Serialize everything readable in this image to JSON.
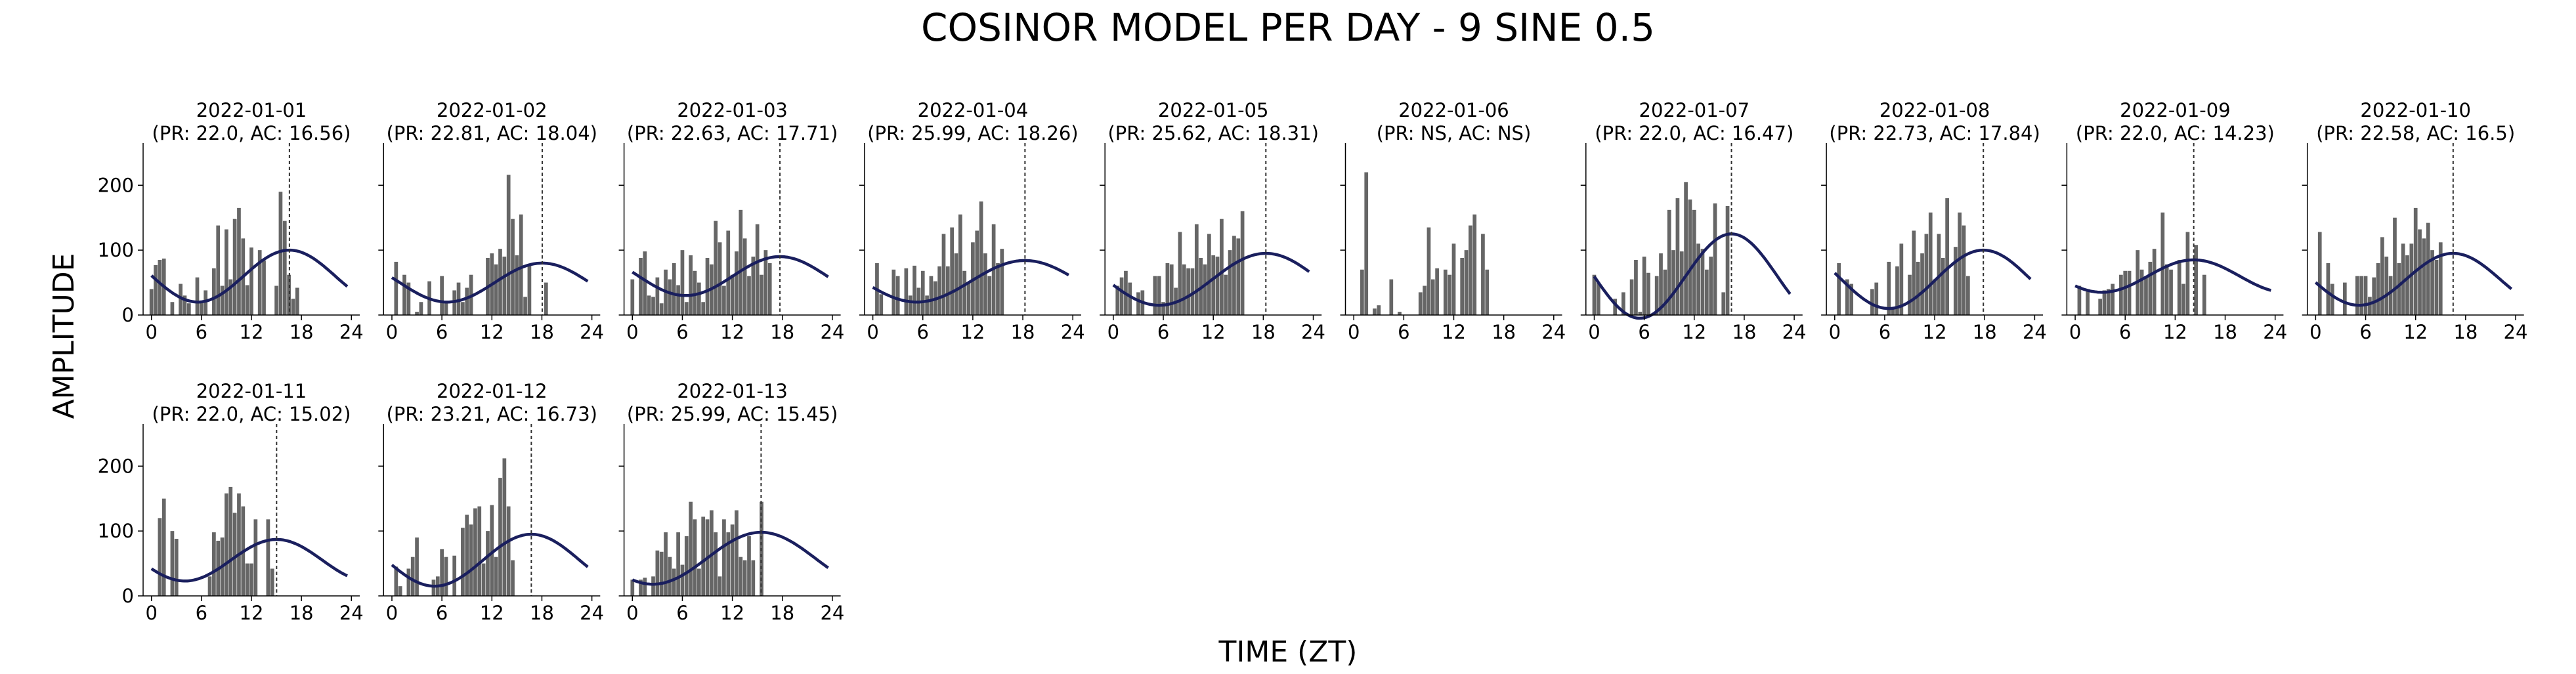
{
  "figure": {
    "title": "COSINOR MODEL PER DAY - 9 SINE 0.5",
    "xlabel": "TIME (ZT)",
    "ylabel": "AMPLITUDE"
  },
  "colors": {
    "bar": "#666666",
    "fit": "#1a1f5e",
    "acrophase_line": "#333333",
    "axis": "#000000"
  },
  "chart_data": {
    "type": "bar",
    "layout": "small-multiples",
    "x_ticks": [
      0,
      6,
      12,
      18,
      24
    ],
    "y_ticks": [
      0,
      100,
      200
    ],
    "xlim": [
      -1,
      25
    ],
    "ylim": [
      0,
      265
    ],
    "bins_per_hour": 2,
    "panels": [
      {
        "title": "2022-01-01",
        "subtitle": "(PR: 22.0, AC: 16.56)",
        "period": 22.0,
        "acrophase": 16.56,
        "mesor": 60,
        "amplitude": 40,
        "values": [
          40,
          77,
          85,
          87,
          0,
          20,
          0,
          48,
          30,
          18,
          0,
          58,
          20,
          38,
          0,
          72,
          138,
          45,
          132,
          55,
          148,
          165,
          118,
          46,
          104,
          0,
          100,
          84,
          0,
          0,
          45,
          190,
          145,
          62,
          25,
          42,
          0,
          0,
          0
        ]
      },
      {
        "title": "2022-01-02",
        "subtitle": "(PR: 22.81, AC: 18.04)",
        "period": 22.81,
        "acrophase": 18.04,
        "mesor": 50,
        "amplitude": 30,
        "values": [
          0,
          82,
          0,
          62,
          50,
          0,
          5,
          20,
          0,
          52,
          0,
          0,
          60,
          18,
          0,
          38,
          50,
          20,
          42,
          62,
          0,
          0,
          0,
          88,
          95,
          78,
          102,
          90,
          216,
          148,
          92,
          155,
          28,
          78,
          0,
          0,
          0,
          50,
          0
        ]
      },
      {
        "title": "2022-01-03",
        "subtitle": "(PR: 22.63, AC: 17.71)",
        "period": 22.63,
        "acrophase": 17.71,
        "mesor": 60,
        "amplitude": 30,
        "values": [
          55,
          0,
          88,
          98,
          30,
          28,
          58,
          18,
          70,
          55,
          80,
          46,
          100,
          20,
          92,
          68,
          50,
          20,
          88,
          78,
          145,
          112,
          45,
          130,
          62,
          98,
          162,
          118,
          60,
          90,
          140,
          62,
          100,
          80,
          0,
          0,
          0,
          0,
          0
        ]
      },
      {
        "title": "2022-01-04",
        "subtitle": "(PR: 25.99, AC: 18.26)",
        "period": 25.99,
        "acrophase": 18.26,
        "mesor": 52,
        "amplitude": 32,
        "values": [
          0,
          80,
          32,
          0,
          0,
          70,
          60,
          0,
          72,
          30,
          76,
          42,
          68,
          30,
          60,
          52,
          75,
          125,
          75,
          135,
          95,
          155,
          68,
          50,
          112,
          130,
          175,
          95,
          60,
          140,
          80,
          102,
          0,
          0,
          0,
          0,
          0,
          0,
          0
        ]
      },
      {
        "title": "2022-01-05",
        "subtitle": "(PR: 25.62, AC: 18.31)",
        "period": 25.62,
        "acrophase": 18.31,
        "mesor": 55,
        "amplitude": 40,
        "values": [
          0,
          45,
          58,
          68,
          50,
          0,
          35,
          38,
          0,
          0,
          60,
          60,
          20,
          80,
          78,
          42,
          128,
          78,
          72,
          72,
          140,
          88,
          78,
          125,
          92,
          90,
          148,
          62,
          100,
          122,
          118,
          160,
          0,
          0,
          0,
          0,
          0,
          0,
          0
        ]
      },
      {
        "title": "2022-01-06",
        "subtitle": "(PR: NS, AC: NS)",
        "period": null,
        "acrophase": null,
        "mesor": null,
        "amplitude": null,
        "values": [
          0,
          0,
          70,
          220,
          0,
          10,
          15,
          0,
          0,
          55,
          0,
          5,
          0,
          0,
          0,
          0,
          35,
          45,
          135,
          55,
          72,
          0,
          70,
          62,
          110,
          0,
          88,
          100,
          138,
          155,
          0,
          125,
          70,
          0,
          0,
          0,
          0,
          0,
          0
        ]
      },
      {
        "title": "2022-01-07",
        "subtitle": "(PR: 22.0, AC: 16.47)",
        "period": 22.0,
        "acrophase": 16.47,
        "mesor": 60,
        "amplitude": 65,
        "values": [
          62,
          50,
          0,
          0,
          0,
          25,
          0,
          35,
          0,
          55,
          85,
          5,
          90,
          65,
          0,
          60,
          95,
          70,
          162,
          100,
          180,
          98,
          205,
          178,
          162,
          110,
          102,
          70,
          90,
          172,
          0,
          35,
          168,
          0,
          0,
          0,
          0,
          0,
          0
        ]
      },
      {
        "title": "2022-01-08",
        "subtitle": "(PR: 22.73, AC: 17.84)",
        "period": 22.73,
        "acrophase": 17.84,
        "mesor": 55,
        "amplitude": 45,
        "values": [
          0,
          80,
          0,
          55,
          48,
          0,
          0,
          0,
          0,
          40,
          50,
          0,
          0,
          82,
          12,
          75,
          110,
          0,
          62,
          130,
          82,
          95,
          125,
          158,
          55,
          125,
          88,
          180,
          0,
          105,
          158,
          138,
          60,
          0,
          0,
          0,
          0,
          0,
          0
        ]
      },
      {
        "title": "2022-01-09",
        "subtitle": "(PR: 22.0, AC: 14.23)",
        "period": 22.0,
        "acrophase": 14.23,
        "mesor": 60,
        "amplitude": 25,
        "values": [
          0,
          45,
          0,
          40,
          0,
          0,
          25,
          38,
          40,
          48,
          0,
          62,
          68,
          68,
          0,
          100,
          70,
          60,
          82,
          102,
          0,
          158,
          78,
          70,
          0,
          85,
          48,
          128,
          0,
          108,
          0,
          62,
          0,
          0,
          0,
          0,
          0,
          0,
          0
        ]
      },
      {
        "title": "2022-01-10",
        "subtitle": "(PR: 22.58, AC: 16.5)",
        "period": 22.58,
        "acrophase": 16.5,
        "mesor": 55,
        "amplitude": 40,
        "values": [
          0,
          128,
          0,
          80,
          48,
          0,
          0,
          50,
          0,
          0,
          60,
          60,
          60,
          28,
          58,
          80,
          120,
          90,
          60,
          150,
          80,
          110,
          92,
          110,
          165,
          132,
          118,
          142,
          100,
          85,
          112,
          0,
          0,
          0,
          0,
          0,
          0,
          0,
          0
        ]
      },
      {
        "title": "2022-01-11",
        "subtitle": "(PR: 22.0, AC: 15.02)",
        "period": 22.0,
        "acrophase": 15.02,
        "mesor": 55,
        "amplitude": 32,
        "values": [
          0,
          0,
          120,
          150,
          0,
          100,
          88,
          0,
          0,
          0,
          0,
          0,
          0,
          0,
          30,
          98,
          85,
          90,
          158,
          168,
          128,
          158,
          138,
          50,
          50,
          118,
          0,
          0,
          118,
          42,
          0,
          0,
          0,
          0,
          0,
          0,
          0,
          0,
          0
        ]
      },
      {
        "title": "2022-01-12",
        "subtitle": "(PR: 23.21, AC: 16.73)",
        "period": 23.21,
        "acrophase": 16.73,
        "mesor": 55,
        "amplitude": 40,
        "values": [
          0,
          45,
          15,
          0,
          42,
          60,
          90,
          0,
          0,
          0,
          25,
          30,
          72,
          60,
          0,
          62,
          0,
          105,
          125,
          110,
          135,
          138,
          50,
          100,
          140,
          60,
          182,
          212,
          138,
          55,
          0,
          0,
          0,
          0,
          0,
          0,
          0,
          0,
          0
        ]
      },
      {
        "title": "2022-01-13",
        "subtitle": "(PR: 25.99, AC: 15.45)",
        "period": 25.99,
        "acrophase": 15.45,
        "mesor": 58,
        "amplitude": 40,
        "values": [
          25,
          0,
          25,
          28,
          0,
          30,
          70,
          68,
          98,
          60,
          42,
          98,
          48,
          92,
          145,
          118,
          42,
          122,
          118,
          132,
          98,
          30,
          118,
          98,
          110,
          132,
          60,
          55,
          92,
          55,
          0,
          145,
          0,
          0,
          0,
          0,
          0,
          0,
          0
        ]
      }
    ]
  }
}
